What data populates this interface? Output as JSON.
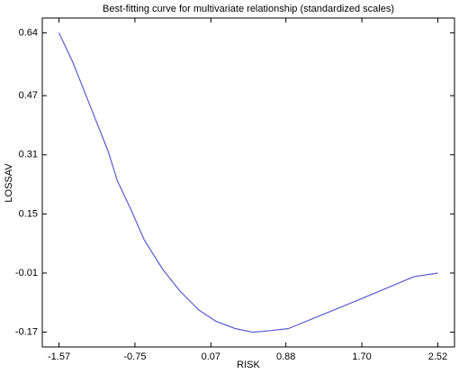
{
  "chart_data": {
    "type": "line",
    "title": "Best-fitting curve for multivariate relationship (standardized scales)",
    "x_label": "RISK",
    "y_label": "LOSSAV",
    "x": [
      -1.57,
      -1.42,
      -1.23,
      -1.04,
      -0.94,
      -0.79,
      -0.65,
      -0.45,
      -0.26,
      -0.06,
      0.12,
      0.33,
      0.52,
      0.71,
      0.91,
      1.3,
      1.69,
      2.07,
      2.26,
      2.52
    ],
    "series": [
      {
        "name": "LOSSAV",
        "color": "#5a5ad2",
        "values": [
          0.64,
          0.56,
          0.44,
          0.32,
          0.24,
          0.16,
          0.08,
          0.0,
          -0.06,
          -0.11,
          -0.14,
          -0.16,
          -0.17,
          -0.166,
          -0.16,
          -0.12,
          -0.08,
          -0.04,
          -0.02,
          -0.01
        ]
      }
    ],
    "xlim": [
      -1.75,
      2.7
    ],
    "ylim": [
      -0.21,
      0.68
    ],
    "xticks": [
      -1.57,
      -0.75,
      0.07,
      0.88,
      {
        "value": 1.7,
        "label": "1.70"
      },
      2.52
    ],
    "yticks": [
      -0.17,
      -0.01,
      0.15,
      0.31,
      0.47,
      0.64
    ]
  }
}
